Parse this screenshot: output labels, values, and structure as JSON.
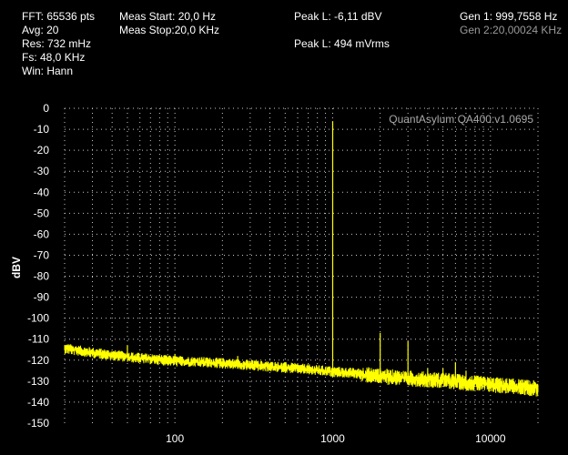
{
  "header": {
    "fft": "FFT: 65536 pts",
    "avg": "Avg: 20",
    "res": "Res: 732 mHz",
    "fs": "Fs: 48,0 KHz",
    "win": "Win: Hann",
    "meas_start": "Meas Start: 20,0 Hz",
    "meas_stop": "Meas Stop:20,0 KHz",
    "peak_dbv": "Peak L: -6,11 dBV",
    "peak_mvrms": "Peak L: 494 mVrms",
    "gen1": "Gen 1: 999,7558 Hz",
    "gen2": "Gen 2:20,00024 KHz"
  },
  "colors": {
    "trace": "#ffff00",
    "grid": "#c8c8c8",
    "background": "#000000",
    "text": "#ffffff",
    "disabled_text": "#9a9a9a"
  },
  "chart_data": {
    "type": "line",
    "watermark": "QuantAsylum QA400:v1.0695",
    "xlabel": "",
    "ylabel": "dBV",
    "xscale": "log",
    "xlim": [
      20,
      20000
    ],
    "ylim": [
      -150,
      0
    ],
    "grid": true,
    "x_ticks": [
      100,
      1000,
      10000
    ],
    "x_tick_labels": [
      "100",
      "1000",
      "10000"
    ],
    "y_ticks": [
      0,
      -10,
      -20,
      -30,
      -40,
      -50,
      -60,
      -70,
      -80,
      -90,
      -100,
      -110,
      -120,
      -130,
      -140,
      -150
    ],
    "y_tick_labels": [
      "0",
      "-10",
      "-20",
      "-30",
      "-40",
      "-50",
      "-60",
      "-70",
      "-80",
      "-90",
      "-100",
      "-110",
      "-120",
      "-130",
      "-140",
      "-150"
    ],
    "series": [
      {
        "noise_floor": {
          "x": [
            20,
            30,
            50,
            70,
            100,
            150,
            200,
            300,
            500,
            700,
            1000,
            1500,
            2000,
            3000,
            5000,
            7000,
            10000,
            15000,
            20000
          ],
          "y": [
            -114,
            -116,
            -118,
            -119,
            -120,
            -120.5,
            -121,
            -122,
            -123,
            -124,
            -125,
            -126,
            -127,
            -128,
            -129,
            -130,
            -131,
            -132,
            -133
          ]
        },
        "peaks": [
          {
            "x": 50,
            "y": -113
          },
          {
            "x": 100,
            "y": -117
          },
          {
            "x": 250,
            "y": -118
          },
          {
            "x": 1000,
            "y": -6.11
          },
          {
            "x": 2000,
            "y": -107
          },
          {
            "x": 3000,
            "y": -111
          },
          {
            "x": 4000,
            "y": -124
          },
          {
            "x": 5000,
            "y": -124
          },
          {
            "x": 6000,
            "y": -121
          },
          {
            "x": 7000,
            "y": -125
          }
        ]
      }
    ]
  }
}
